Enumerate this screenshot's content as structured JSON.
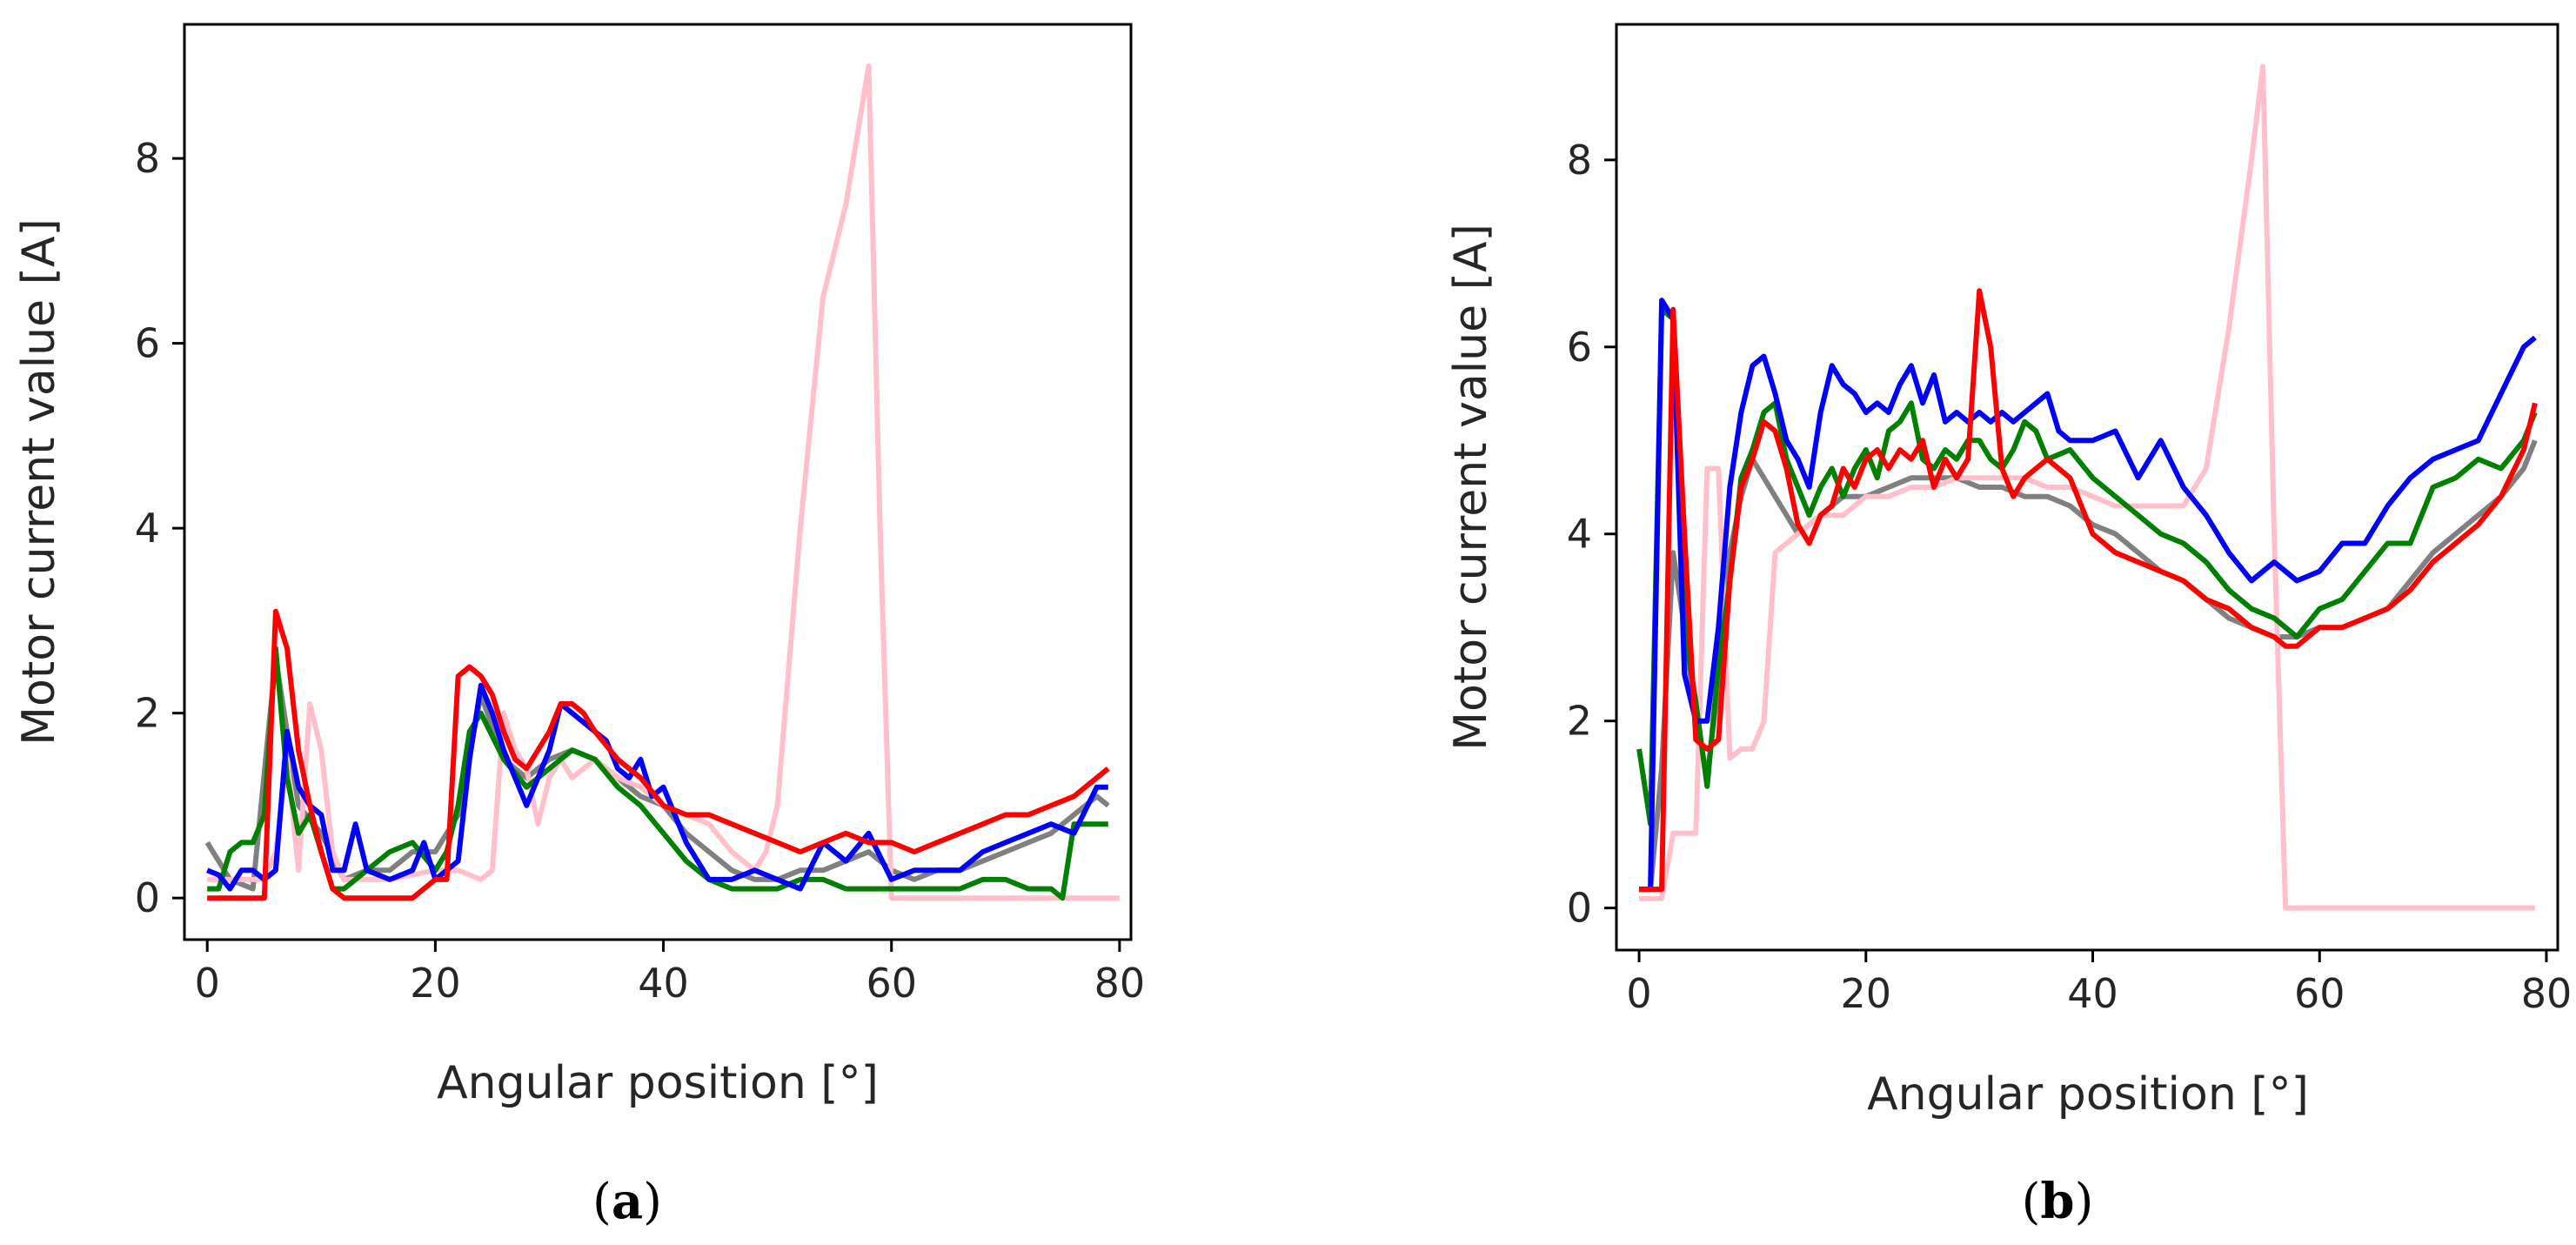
{
  "chart_data": [
    {
      "type": "line",
      "caption": "(a)",
      "caption_letter": "a",
      "xlabel": "Angular position [°]",
      "ylabel": "Motor current value [A]",
      "xlim": [
        -2,
        81
      ],
      "ylim": [
        -0.45,
        9.45
      ],
      "xticks": [
        "0",
        "20",
        "40",
        "60",
        "80"
      ],
      "yticks": [
        "0",
        "2",
        "4",
        "6",
        "8"
      ],
      "series": [
        {
          "name": "gray",
          "color": "#808080",
          "x": [
            0,
            2,
            4,
            6,
            8,
            10,
            12,
            14,
            16,
            18,
            20,
            22,
            24,
            26,
            28,
            30,
            32,
            34,
            36,
            38,
            40,
            42,
            44,
            46,
            48,
            50,
            52,
            54,
            56,
            58,
            60,
            62,
            64,
            66,
            68,
            70,
            72,
            74,
            76,
            78,
            79
          ],
          "y": [
            0.6,
            0.2,
            0.1,
            2.6,
            1.0,
            0.7,
            0.2,
            0.3,
            0.3,
            0.5,
            0.5,
            0.9,
            2.2,
            1.5,
            1.3,
            1.5,
            1.6,
            1.5,
            1.3,
            1.1,
            1.0,
            0.7,
            0.5,
            0.3,
            0.2,
            0.2,
            0.3,
            0.3,
            0.4,
            0.5,
            0.3,
            0.2,
            0.3,
            0.3,
            0.4,
            0.5,
            0.6,
            0.7,
            0.9,
            1.1,
            1.0
          ]
        },
        {
          "name": "pink",
          "color": "#ffc0cb",
          "x": [
            0,
            5,
            6,
            7,
            8,
            9,
            10,
            11,
            12,
            16,
            20,
            21,
            22,
            24,
            25,
            26,
            27,
            28,
            29,
            30,
            31,
            32,
            34,
            36,
            38,
            40,
            42,
            44,
            46,
            48,
            49,
            50,
            52,
            54,
            56,
            58,
            59,
            60,
            62,
            80
          ],
          "y": [
            0.2,
            0.2,
            0.5,
            1.5,
            0.3,
            2.1,
            1.6,
            0.5,
            0.2,
            0.2,
            0.3,
            0.3,
            0.3,
            0.2,
            0.3,
            2.0,
            1.6,
            1.4,
            0.8,
            1.3,
            1.5,
            1.3,
            1.5,
            1.3,
            1.2,
            1.0,
            0.9,
            0.8,
            0.5,
            0.3,
            0.5,
            1.0,
            4.0,
            6.5,
            7.5,
            9.0,
            4.0,
            0.0,
            0.0,
            0.0
          ]
        },
        {
          "name": "green",
          "color": "#008000",
          "x": [
            0,
            1,
            2,
            3,
            4,
            5,
            6,
            7,
            8,
            9,
            10,
            11,
            12,
            14,
            16,
            18,
            20,
            21,
            22,
            23,
            24,
            26,
            28,
            30,
            32,
            34,
            36,
            38,
            40,
            42,
            44,
            46,
            48,
            50,
            52,
            54,
            56,
            58,
            60,
            62,
            64,
            66,
            68,
            70,
            72,
            74,
            75,
            76,
            77,
            79
          ],
          "y": [
            0.1,
            0.1,
            0.5,
            0.6,
            0.6,
            0.9,
            2.7,
            1.3,
            0.7,
            0.9,
            0.5,
            0.1,
            0.1,
            0.3,
            0.5,
            0.6,
            0.3,
            0.5,
            1.0,
            1.8,
            2.0,
            1.5,
            1.2,
            1.4,
            1.6,
            1.5,
            1.2,
            1.0,
            0.7,
            0.4,
            0.2,
            0.1,
            0.1,
            0.1,
            0.2,
            0.2,
            0.1,
            0.1,
            0.1,
            0.1,
            0.1,
            0.1,
            0.2,
            0.2,
            0.1,
            0.1,
            0.0,
            0.8,
            0.8,
            0.8
          ]
        },
        {
          "name": "blue",
          "color": "#0000ff",
          "x": [
            0,
            1,
            2,
            3,
            4,
            5,
            6,
            7,
            8,
            9,
            10,
            11,
            12,
            13,
            14,
            16,
            18,
            19,
            20,
            21,
            22,
            23,
            24,
            25,
            26,
            27,
            28,
            29,
            30,
            31,
            32,
            33,
            34,
            35,
            36,
            37,
            38,
            39,
            40,
            42,
            44,
            46,
            48,
            50,
            52,
            54,
            56,
            58,
            60,
            62,
            64,
            66,
            68,
            70,
            72,
            74,
            76,
            78,
            79
          ],
          "y": [
            0.3,
            0.25,
            0.1,
            0.3,
            0.3,
            0.2,
            0.3,
            1.8,
            1.2,
            1.0,
            0.9,
            0.3,
            0.3,
            0.8,
            0.3,
            0.2,
            0.3,
            0.6,
            0.2,
            0.3,
            0.4,
            1.5,
            2.3,
            2.0,
            1.6,
            1.3,
            1.0,
            1.3,
            1.6,
            2.1,
            2.0,
            1.9,
            1.8,
            1.7,
            1.4,
            1.3,
            1.5,
            1.1,
            1.2,
            0.6,
            0.2,
            0.2,
            0.3,
            0.2,
            0.1,
            0.6,
            0.4,
            0.7,
            0.2,
            0.3,
            0.3,
            0.3,
            0.5,
            0.6,
            0.7,
            0.8,
            0.7,
            1.2,
            1.2
          ]
        },
        {
          "name": "red",
          "color": "#ff0000",
          "x": [
            0,
            5,
            6,
            7,
            8,
            9,
            10,
            11,
            12,
            14,
            16,
            18,
            20,
            21,
            22,
            23,
            24,
            25,
            26,
            27,
            28,
            29,
            30,
            31,
            32,
            33,
            34,
            36,
            38,
            40,
            42,
            44,
            46,
            48,
            50,
            52,
            54,
            56,
            58,
            60,
            62,
            64,
            66,
            68,
            70,
            72,
            74,
            76,
            78,
            79
          ],
          "y": [
            0.0,
            0.0,
            3.1,
            2.7,
            1.6,
            1.0,
            0.5,
            0.1,
            0.0,
            0.0,
            0.0,
            0.0,
            0.2,
            0.2,
            2.4,
            2.5,
            2.4,
            2.2,
            1.8,
            1.5,
            1.4,
            1.6,
            1.8,
            2.1,
            2.1,
            2.0,
            1.8,
            1.5,
            1.3,
            1.0,
            0.9,
            0.9,
            0.8,
            0.7,
            0.6,
            0.5,
            0.6,
            0.7,
            0.6,
            0.6,
            0.5,
            0.6,
            0.7,
            0.8,
            0.9,
            0.9,
            1.0,
            1.1,
            1.3,
            1.4
          ]
        }
      ]
    },
    {
      "type": "line",
      "caption": "(b)",
      "caption_letter": "b",
      "xlabel": "Angular position [°]",
      "ylabel": "Motor current value [A]",
      "xlim": [
        -2,
        81
      ],
      "ylim": [
        -0.45,
        9.45
      ],
      "xticks": [
        "0",
        "20",
        "40",
        "60",
        "80"
      ],
      "yticks": [
        "0",
        "2",
        "4",
        "6",
        "8"
      ],
      "series": [
        {
          "name": "gray",
          "color": "#808080",
          "x": [
            0,
            1,
            2,
            3,
            4,
            5,
            6,
            7,
            8,
            9,
            10,
            11,
            12,
            14,
            16,
            18,
            20,
            22,
            24,
            26,
            28,
            30,
            32,
            34,
            36,
            38,
            40,
            42,
            44,
            46,
            48,
            50,
            52,
            54,
            56,
            58,
            60,
            62,
            64,
            66,
            68,
            70,
            72,
            74,
            76,
            78,
            79
          ],
          "y": [
            0.2,
            0.2,
            1.5,
            3.8,
            3.0,
            2.0,
            1.4,
            2.4,
            3.8,
            4.4,
            4.8,
            4.6,
            4.4,
            4.0,
            4.2,
            4.4,
            4.4,
            4.5,
            4.6,
            4.6,
            4.6,
            4.5,
            4.5,
            4.4,
            4.4,
            4.3,
            4.1,
            4.0,
            3.8,
            3.6,
            3.5,
            3.3,
            3.1,
            3.0,
            2.9,
            2.9,
            3.0,
            3.0,
            3.1,
            3.2,
            3.5,
            3.8,
            4.0,
            4.2,
            4.4,
            4.7,
            5.0
          ]
        },
        {
          "name": "pink",
          "color": "#ffc0cb",
          "x": [
            0,
            1,
            2,
            3,
            4,
            5,
            6,
            7,
            8,
            9,
            10,
            11,
            12,
            14,
            16,
            18,
            20,
            22,
            24,
            26,
            28,
            30,
            32,
            34,
            36,
            38,
            40,
            42,
            44,
            46,
            48,
            50,
            52,
            54,
            55,
            56,
            57,
            58,
            60,
            62,
            64,
            66,
            68,
            70,
            72,
            74,
            76,
            78,
            79
          ],
          "y": [
            0.1,
            0.1,
            0.1,
            0.8,
            0.8,
            0.8,
            4.7,
            4.7,
            1.6,
            1.7,
            1.7,
            2.0,
            3.8,
            4.0,
            4.2,
            4.2,
            4.4,
            4.4,
            4.5,
            4.5,
            4.6,
            4.6,
            4.6,
            4.6,
            4.5,
            4.5,
            4.4,
            4.3,
            4.3,
            4.3,
            4.3,
            4.7,
            6.2,
            8.0,
            9.0,
            4.0,
            0.0,
            0.0,
            0.0,
            0.0,
            0.0,
            0.0,
            0.0,
            0.0,
            0.0,
            0.0,
            0.0,
            0.0,
            0.0
          ]
        },
        {
          "name": "green",
          "color": "#008000",
          "x": [
            0,
            1,
            2,
            3,
            4,
            5,
            6,
            7,
            8,
            9,
            10,
            11,
            12,
            13,
            14,
            15,
            16,
            17,
            18,
            19,
            20,
            21,
            22,
            23,
            24,
            25,
            26,
            27,
            28,
            29,
            30,
            31,
            32,
            33,
            34,
            35,
            36,
            38,
            40,
            42,
            44,
            46,
            48,
            50,
            52,
            54,
            56,
            58,
            60,
            62,
            64,
            66,
            68,
            70,
            72,
            74,
            76,
            78,
            79
          ],
          "y": [
            1.7,
            0.9,
            6.4,
            6.3,
            3.0,
            2.2,
            1.3,
            2.6,
            3.5,
            4.6,
            4.9,
            5.3,
            5.4,
            4.8,
            4.5,
            4.2,
            4.5,
            4.7,
            4.4,
            4.7,
            4.9,
            4.6,
            5.1,
            5.2,
            5.4,
            4.8,
            4.7,
            4.9,
            4.8,
            5.0,
            5.0,
            4.8,
            4.7,
            4.9,
            5.2,
            5.1,
            4.8,
            4.9,
            4.6,
            4.4,
            4.2,
            4.0,
            3.9,
            3.7,
            3.4,
            3.2,
            3.1,
            2.9,
            3.2,
            3.3,
            3.6,
            3.9,
            3.9,
            4.5,
            4.6,
            4.8,
            4.7,
            5.0,
            5.3
          ]
        },
        {
          "name": "blue",
          "color": "#0000ff",
          "x": [
            0,
            1,
            2,
            3,
            4,
            5,
            6,
            7,
            8,
            9,
            10,
            11,
            12,
            13,
            14,
            15,
            16,
            17,
            18,
            19,
            20,
            21,
            22,
            23,
            24,
            25,
            26,
            27,
            28,
            29,
            30,
            31,
            32,
            33,
            34,
            35,
            36,
            37,
            38,
            39,
            40,
            42,
            44,
            46,
            48,
            50,
            52,
            54,
            56,
            58,
            60,
            62,
            64,
            66,
            68,
            70,
            72,
            74,
            76,
            78,
            79
          ],
          "y": [
            0.2,
            0.2,
            6.5,
            6.3,
            2.5,
            2.0,
            2.0,
            3.0,
            4.5,
            5.3,
            5.8,
            5.9,
            5.5,
            5.0,
            4.8,
            4.5,
            5.3,
            5.8,
            5.6,
            5.5,
            5.3,
            5.4,
            5.3,
            5.6,
            5.8,
            5.4,
            5.7,
            5.2,
            5.3,
            5.2,
            5.3,
            5.2,
            5.3,
            5.2,
            5.3,
            5.4,
            5.5,
            5.1,
            5.0,
            5.0,
            5.0,
            5.1,
            4.6,
            5.0,
            4.5,
            4.2,
            3.8,
            3.5,
            3.7,
            3.5,
            3.6,
            3.9,
            3.9,
            4.3,
            4.6,
            4.8,
            4.9,
            5.0,
            5.5,
            6.0,
            6.1
          ]
        },
        {
          "name": "red",
          "color": "#ff0000",
          "x": [
            0,
            1,
            2,
            3,
            4,
            5,
            6,
            7,
            8,
            9,
            10,
            11,
            12,
            13,
            14,
            15,
            16,
            17,
            18,
            19,
            20,
            21,
            22,
            23,
            24,
            25,
            26,
            27,
            28,
            29,
            30,
            31,
            32,
            33,
            34,
            35,
            36,
            38,
            40,
            42,
            44,
            46,
            48,
            50,
            52,
            54,
            56,
            57,
            58,
            60,
            62,
            64,
            66,
            68,
            70,
            72,
            74,
            76,
            78,
            79
          ],
          "y": [
            0.2,
            0.2,
            0.2,
            6.4,
            4.0,
            1.8,
            1.7,
            1.8,
            3.5,
            4.5,
            4.8,
            5.2,
            5.1,
            4.7,
            4.1,
            3.9,
            4.2,
            4.3,
            4.7,
            4.5,
            4.8,
            4.9,
            4.7,
            4.9,
            4.8,
            5.0,
            4.5,
            4.8,
            4.6,
            4.8,
            6.6,
            6.0,
            4.7,
            4.4,
            4.6,
            4.7,
            4.8,
            4.6,
            4.0,
            3.8,
            3.7,
            3.6,
            3.5,
            3.3,
            3.2,
            3.0,
            2.9,
            2.8,
            2.8,
            3.0,
            3.0,
            3.1,
            3.2,
            3.4,
            3.7,
            3.9,
            4.1,
            4.4,
            4.9,
            5.4
          ]
        }
      ]
    }
  ]
}
